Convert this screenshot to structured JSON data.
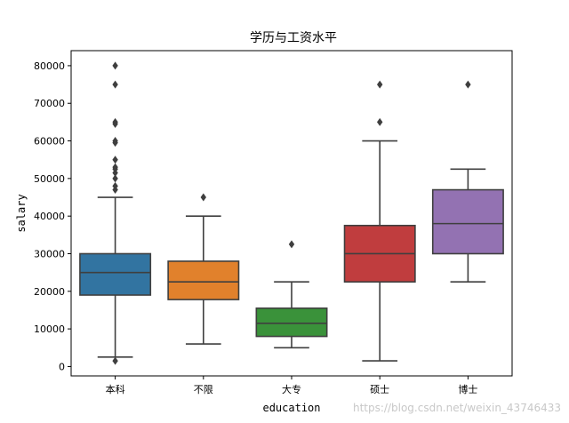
{
  "chart_data": {
    "type": "boxplot",
    "title": "学历与工资水平",
    "xlabel": "education",
    "ylabel": "salary",
    "ylim": [
      -2500,
      84000
    ],
    "yticks": [
      0,
      10000,
      20000,
      30000,
      40000,
      50000,
      60000,
      70000,
      80000
    ],
    "categories": [
      "本科",
      "不限",
      "大专",
      "硕士",
      "博士"
    ],
    "colors": [
      "#3274a1",
      "#e1812c",
      "#3a923a",
      "#c03d3e",
      "#9372b2"
    ],
    "boxes": [
      {
        "whisker_low": 2500,
        "q1": 19000,
        "median": 25000,
        "q3": 30000,
        "whisker_high": 45000,
        "outliers": [
          1500,
          47000,
          48000,
          50000,
          51500,
          52500,
          53000,
          55000,
          59500,
          60000,
          64500,
          65000,
          75000,
          80000
        ]
      },
      {
        "whisker_low": 6000,
        "q1": 17800,
        "median": 22500,
        "q3": 28000,
        "whisker_high": 40000,
        "outliers": [
          45000
        ]
      },
      {
        "whisker_low": 5000,
        "q1": 8000,
        "median": 11500,
        "q3": 15500,
        "whisker_high": 22500,
        "outliers": [
          32500
        ]
      },
      {
        "whisker_low": 1500,
        "q1": 22500,
        "median": 30000,
        "q3": 37500,
        "whisker_high": 60000,
        "outliers": [
          65000,
          75000
        ]
      },
      {
        "whisker_low": 22500,
        "q1": 30000,
        "median": 38000,
        "q3": 47000,
        "whisker_high": 52500,
        "outliers": [
          75000
        ]
      }
    ]
  },
  "watermark": "https://blog.csdn.net/weixin_43746433"
}
